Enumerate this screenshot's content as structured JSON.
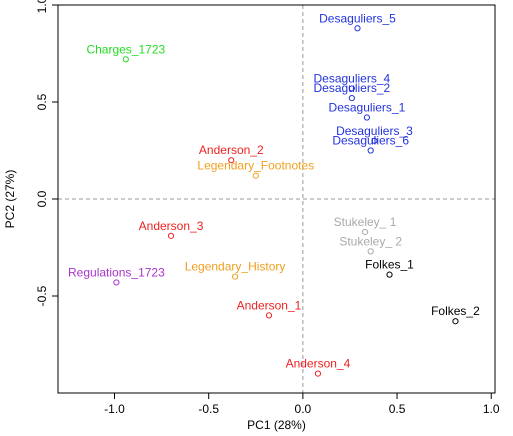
{
  "chart_data": {
    "type": "scatter",
    "xlabel": "PC1 (28%)",
    "ylabel": "PC2 (27%)",
    "xlim": [
      -1.3,
      1.02
    ],
    "ylim": [
      -1.0,
      1.0
    ],
    "xticks": [
      -1.0,
      -0.5,
      0.0,
      0.5,
      1.0
    ],
    "xtick_labels": [
      "-1.0",
      "-0.5",
      "0.0",
      "0.5",
      "1.0"
    ],
    "yticks": [
      -0.5,
      0.0,
      0.5,
      1.0
    ],
    "ytick_labels": [
      "-0.5",
      "0.0",
      "0.5",
      "1.0"
    ],
    "reference_lines": {
      "x": 0.0,
      "y": 0.0,
      "style": "dashed",
      "color": "#999999"
    },
    "grid": false,
    "legend": "none",
    "points": [
      {
        "label": "Charges_1723",
        "x": -0.94,
        "y": 0.72,
        "color": "#22dd22"
      },
      {
        "label": "Regulations_1723",
        "x": -0.99,
        "y": -0.43,
        "color": "#aa33cc"
      },
      {
        "label": "Anderson_1",
        "x": -0.18,
        "y": -0.6,
        "color": "#ee2222"
      },
      {
        "label": "Anderson_2",
        "x": -0.38,
        "y": 0.2,
        "color": "#ee2222"
      },
      {
        "label": "Anderson_3",
        "x": -0.7,
        "y": -0.19,
        "color": "#ee2222"
      },
      {
        "label": "Anderson_4",
        "x": 0.08,
        "y": -0.9,
        "color": "#ee2222"
      },
      {
        "label": "Legendary_Footnotes",
        "x": -0.25,
        "y": 0.12,
        "color": "#f0a020"
      },
      {
        "label": "Legendary_History",
        "x": -0.36,
        "y": -0.4,
        "color": "#f0a020"
      },
      {
        "label": "Desaguliers_1",
        "x": 0.34,
        "y": 0.42,
        "color": "#2233dd"
      },
      {
        "label": "Desaguliers_2",
        "x": 0.26,
        "y": 0.52,
        "color": "#2233dd"
      },
      {
        "label": "Desaguliers_3",
        "x": 0.38,
        "y": 0.3,
        "color": "#2233dd"
      },
      {
        "label": "Desaguliers_4",
        "x": 0.26,
        "y": 0.57,
        "color": "#2233dd"
      },
      {
        "label": "Desaguliers_5",
        "x": 0.29,
        "y": 0.88,
        "color": "#2233dd"
      },
      {
        "label": "Desaguliers_6",
        "x": 0.36,
        "y": 0.25,
        "color": "#2233dd"
      },
      {
        "label": "Stukeley_ 1",
        "x": 0.33,
        "y": -0.17,
        "color": "#aaaaaa"
      },
      {
        "label": "Stukeley_ 2",
        "x": 0.36,
        "y": -0.27,
        "color": "#aaaaaa"
      },
      {
        "label": "Folkes_1",
        "x": 0.46,
        "y": -0.39,
        "color": "#000000"
      },
      {
        "label": "Folkes_2",
        "x": 0.81,
        "y": -0.63,
        "color": "#000000"
      }
    ]
  }
}
